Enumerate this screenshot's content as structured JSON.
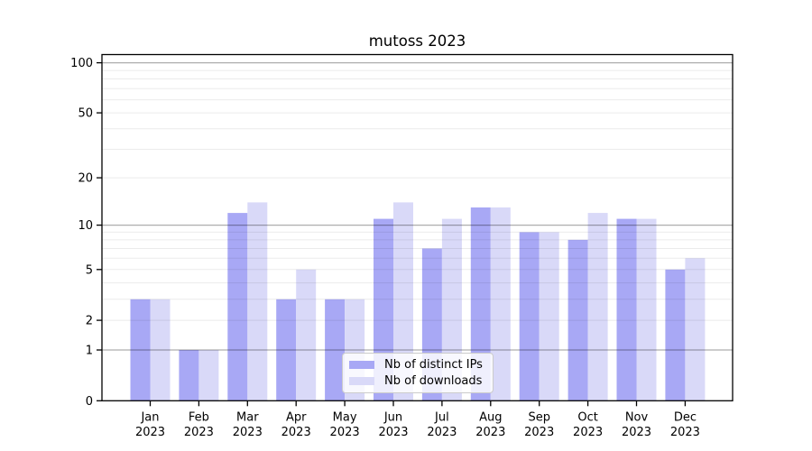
{
  "chart_data": {
    "type": "bar",
    "title": "mutoss 2023",
    "categories": [
      "Jan",
      "Feb",
      "Mar",
      "Apr",
      "May",
      "Jun",
      "Jul",
      "Aug",
      "Sep",
      "Oct",
      "Nov",
      "Dec"
    ],
    "x_year_label": "2023",
    "series": [
      {
        "name": "Nb of distinct IPs",
        "color": "#a8a8f5",
        "values": [
          3,
          1,
          12,
          3,
          3,
          11,
          7,
          13,
          9,
          8,
          11,
          5
        ]
      },
      {
        "name": "Nb of downloads",
        "color": "#d9d9f8",
        "values": [
          3,
          1,
          14,
          5,
          3,
          14,
          11,
          13,
          9,
          12,
          11,
          6
        ]
      }
    ],
    "yscale": "log1p",
    "ylim": [
      0,
      112
    ],
    "yticks": [
      0,
      1,
      2,
      5,
      10,
      20,
      50,
      100
    ],
    "major_gridlines": [
      1,
      10,
      100
    ],
    "minor_gridlines": [
      2,
      3,
      4,
      5,
      6,
      7,
      8,
      9,
      20,
      30,
      40,
      50,
      60,
      70,
      80,
      90
    ],
    "grid": true,
    "legend_position": "lower-center",
    "axis_color": "#000000",
    "grid_major_color": "rgba(0,0,0,0.32)",
    "grid_minor_color": "rgba(0,0,0,0.08)"
  }
}
